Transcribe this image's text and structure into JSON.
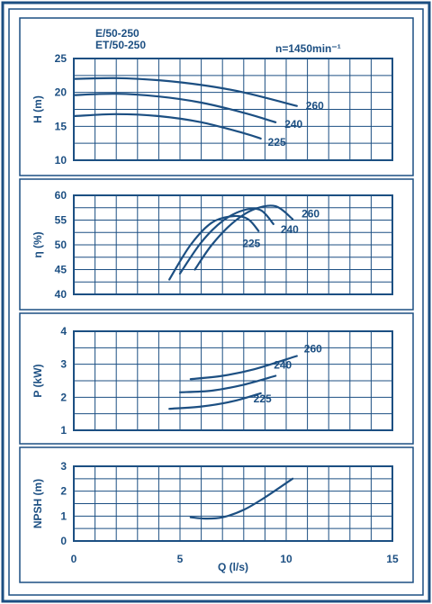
{
  "header": {
    "model_line_1": "E/50-250",
    "model_line_2": "ET/50-250",
    "speed": "n=1450min⁻¹"
  },
  "colors": {
    "ink": "#1c4f82",
    "background": "#ffffff"
  },
  "chart_data": [
    {
      "type": "line",
      "xlabel": "",
      "ylabel": "H (m)",
      "xlim": [
        0,
        15
      ],
      "ylim": [
        10,
        25
      ],
      "yticks": [
        10,
        15,
        20,
        25
      ],
      "grid": true,
      "series": [
        {
          "name": "260",
          "x": [
            0,
            2,
            4,
            6,
            8,
            10.5
          ],
          "y": [
            22,
            22.1,
            21.8,
            21.1,
            20,
            18
          ]
        },
        {
          "name": "240",
          "x": [
            0,
            2,
            4,
            6,
            8,
            9.5
          ],
          "y": [
            19.6,
            19.8,
            19.4,
            18.5,
            17,
            15.6
          ]
        },
        {
          "name": "225",
          "x": [
            0,
            2,
            4,
            6,
            8,
            8.8
          ],
          "y": [
            16.5,
            16.8,
            16.5,
            15.6,
            14,
            13.2
          ]
        }
      ]
    },
    {
      "type": "line",
      "xlabel": "",
      "ylabel": "η (%)",
      "xlim": [
        0,
        15
      ],
      "ylim": [
        40,
        60
      ],
      "yticks": [
        40,
        45,
        50,
        55,
        60
      ],
      "grid": true,
      "series": [
        {
          "name": "260",
          "x": [
            5.7,
            6.5,
            7.5,
            8.5,
            9.5,
            10.3
          ],
          "y": [
            45,
            50,
            54.5,
            57.2,
            57.8,
            55.2
          ]
        },
        {
          "name": "240",
          "x": [
            5,
            6,
            7,
            8,
            8.8,
            9.4
          ],
          "y": [
            44.2,
            50.5,
            54.8,
            57,
            57,
            54.2
          ]
        },
        {
          "name": "225",
          "x": [
            4.5,
            5.5,
            6.5,
            7.5,
            8.2,
            8.7
          ],
          "y": [
            43,
            50,
            54.5,
            55.8,
            55.2,
            52.8
          ]
        }
      ]
    },
    {
      "type": "line",
      "xlabel": "",
      "ylabel": "P (kW)",
      "xlim": [
        0,
        15
      ],
      "ylim": [
        1,
        4
      ],
      "yticks": [
        1,
        2,
        3,
        4
      ],
      "grid": true,
      "series": [
        {
          "name": "260",
          "x": [
            5.5,
            7,
            8.5,
            10.5
          ],
          "y": [
            2.55,
            2.65,
            2.85,
            3.25
          ]
        },
        {
          "name": "240",
          "x": [
            5,
            6.5,
            8,
            9.5
          ],
          "y": [
            2.15,
            2.2,
            2.38,
            2.65
          ]
        },
        {
          "name": "225",
          "x": [
            4.5,
            6,
            7.5,
            8.8
          ],
          "y": [
            1.65,
            1.72,
            1.88,
            2.12
          ]
        }
      ]
    },
    {
      "type": "line",
      "xlabel": "Q (l/s)",
      "ylabel": "NPSH (m)",
      "xlim": [
        0,
        15
      ],
      "ylim": [
        0,
        3
      ],
      "yticks": [
        0,
        1,
        2,
        3
      ],
      "xticks": [
        0,
        5,
        10,
        15
      ],
      "grid": true,
      "series": [
        {
          "x": [
            5.5,
            6.2,
            7,
            8,
            9,
            10.3
          ],
          "y": [
            0.95,
            0.9,
            0.95,
            1.25,
            1.75,
            2.5
          ]
        }
      ]
    }
  ]
}
